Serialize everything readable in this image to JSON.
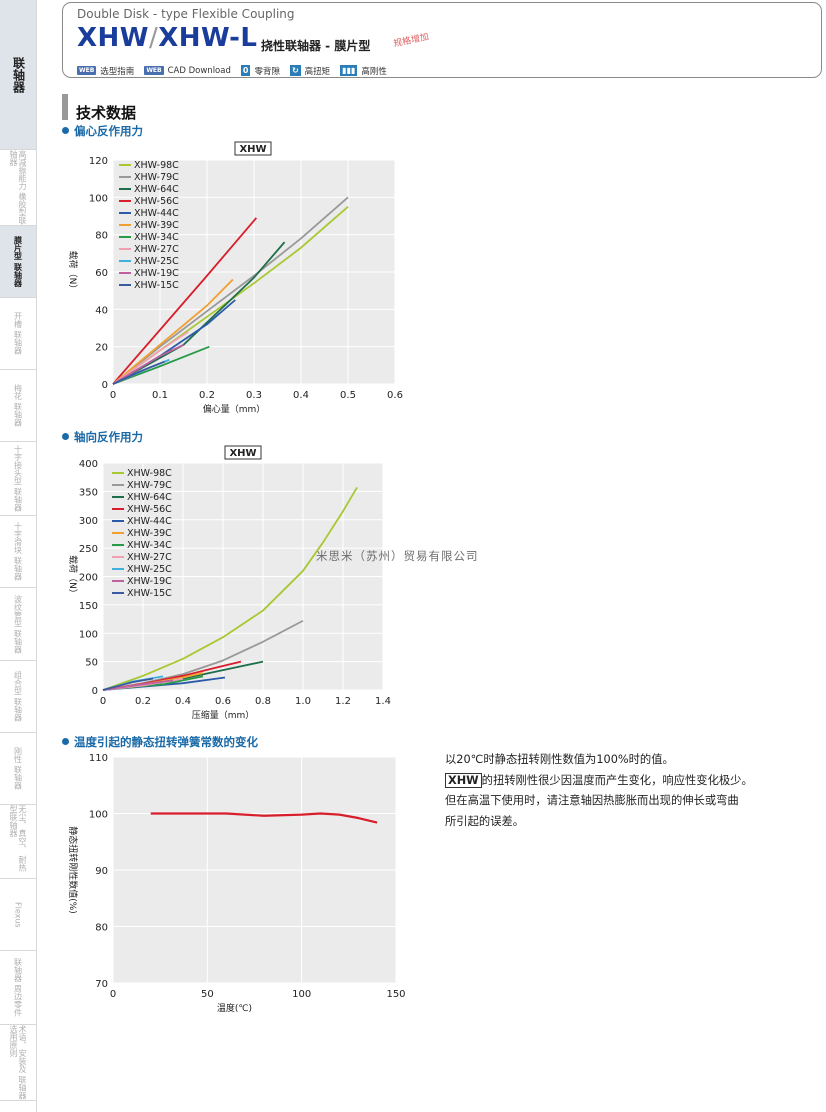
{
  "sidebar": {
    "tabs": [
      {
        "label": "联轴器",
        "state": "main"
      },
      {
        "label": "高减振能力\n橡胶型联轴器",
        "state": "normal"
      },
      {
        "label": "膜片型\n联轴器",
        "state": "active"
      },
      {
        "label": "开槽\n联轴器",
        "state": "normal"
      },
      {
        "label": "梅花\n联轴器",
        "state": "normal"
      },
      {
        "label": "十字接头型\n联轴器",
        "state": "normal"
      },
      {
        "label": "十字滑块\n联轴器",
        "state": "normal"
      },
      {
        "label": "波纹管型\n联轴器",
        "state": "normal"
      },
      {
        "label": "组合型\n联轴器",
        "state": "normal"
      },
      {
        "label": "刚性\n联轴器",
        "state": "normal"
      },
      {
        "label": "无尘、真空、\n耐热型联轴器",
        "state": "normal"
      },
      {
        "label": "Flexus",
        "state": "normal"
      },
      {
        "label": "联轴器\n周边零件",
        "state": "normal"
      },
      {
        "label": "术语、安装及\n联轴器选用原则",
        "state": "normal"
      }
    ]
  },
  "header": {
    "subtitle": "Double Disk - type Flexible Coupling",
    "model_a": "XHW",
    "model_sep": "/",
    "model_b": "XHW-L",
    "type": "挠性联轴器 - 膜片型",
    "extension": "规格增加",
    "links": {
      "web_badge": "WEB",
      "selection_guide": "选型指南",
      "cad_download": "CAD Download",
      "zero_backlash_icon": "0",
      "zero_backlash": "零背隙",
      "high_torque": "高扭矩",
      "high_rigidity": "高刚性"
    }
  },
  "section_title": "技术数据",
  "charts_meta": {
    "eccentric_heading": "偏心反作用力",
    "axial_heading": "轴向反作用力",
    "temperature_heading": "温度引起的静态扭转弹簧常数的变化"
  },
  "note": {
    "line1": "以20℃时静态扭转刚性数值为100%时的值。",
    "line2_box": "XHW",
    "line2_rest": "的扭转刚性很少因温度而产生变化，响应性变化极少。",
    "line3": "但在高温下使用时，请注意轴因热膨胀而出现的伸长或弯曲",
    "line4": "所引起的误差。"
  },
  "watermark": "米思米（苏州）贸易有限公司",
  "series_colors": {
    "XHW-98C": "#a8c832",
    "XHW-79C": "#999999",
    "XHW-64C": "#1e6e4a",
    "XHW-56C": "#d81e2a",
    "XHW-44C": "#2a5aa8",
    "XHW-39C": "#f0a030",
    "XHW-34C": "#2a9a4a",
    "XHW-27C": "#f0a0b0",
    "XHW-25C": "#40b0e0",
    "XHW-19C": "#c060a0",
    "XHW-15C": "#3a5aa0"
  },
  "chart_data": [
    {
      "type": "line",
      "title": "XHW",
      "xlabel": "偏心量（mm）",
      "ylabel": "载荷（N）",
      "xlim": [
        0,
        0.6
      ],
      "ylim": [
        0,
        120
      ],
      "xticks": [
        "0",
        "0.1",
        "0.2",
        "0.3",
        "0.4",
        "0.5",
        "0.6"
      ],
      "yticks": [
        "0",
        "20",
        "40",
        "60",
        "80",
        "100",
        "120"
      ],
      "legend": "top-left",
      "series": [
        {
          "name": "XHW-98C",
          "points": [
            [
              0,
              0
            ],
            [
              0.1,
              18
            ],
            [
              0.2,
              36
            ],
            [
              0.3,
              54
            ],
            [
              0.4,
              73
            ],
            [
              0.5,
              95
            ]
          ]
        },
        {
          "name": "XHW-79C",
          "points": [
            [
              0,
              0
            ],
            [
              0.1,
              20
            ],
            [
              0.2,
              39
            ],
            [
              0.3,
              58
            ],
            [
              0.4,
              78
            ],
            [
              0.5,
              100
            ]
          ]
        },
        {
          "name": "XHW-64C",
          "points": [
            [
              0,
              0
            ],
            [
              0.15,
              21
            ],
            [
              0.25,
              45
            ],
            [
              0.3,
              57
            ],
            [
              0.365,
              76
            ]
          ]
        },
        {
          "name": "XHW-56C",
          "points": [
            [
              0,
              0
            ],
            [
              0.1,
              29
            ],
            [
              0.2,
              58
            ],
            [
              0.305,
              89
            ]
          ]
        },
        {
          "name": "XHW-44C",
          "points": [
            [
              0,
              0
            ],
            [
              0.1,
              15
            ],
            [
              0.2,
              32
            ],
            [
              0.26,
              45
            ]
          ]
        },
        {
          "name": "XHW-39C",
          "points": [
            [
              0,
              0
            ],
            [
              0.1,
              21
            ],
            [
              0.2,
              42
            ],
            [
              0.255,
              56
            ]
          ]
        },
        {
          "name": "XHW-34C",
          "points": [
            [
              0,
              0
            ],
            [
              0.1,
              9.5
            ],
            [
              0.205,
              20
            ]
          ]
        },
        {
          "name": "XHW-27C",
          "points": [
            [
              0,
              0
            ],
            [
              0.1,
              18
            ],
            [
              0.16,
              28
            ]
          ]
        },
        {
          "name": "XHW-25C",
          "points": [
            [
              0,
              0
            ],
            [
              0.08,
              9
            ],
            [
              0.12,
              13
            ]
          ]
        },
        {
          "name": "XHW-19C",
          "points": [
            [
              0,
              0
            ],
            [
              0.1,
              15
            ],
            [
              0.15,
              21
            ]
          ]
        },
        {
          "name": "XHW-15C",
          "points": [
            [
              0,
              0
            ],
            [
              0.06,
              7
            ],
            [
              0.11,
              12
            ]
          ]
        }
      ]
    },
    {
      "type": "line",
      "title": "XHW",
      "xlabel": "压缩量（mm）",
      "ylabel": "载荷（N）",
      "xlim": [
        0,
        1.4
      ],
      "ylim": [
        0,
        400
      ],
      "xticks": [
        "0",
        "0.2",
        "0.4",
        "0.6",
        "0.8",
        "1.0",
        "1.2",
        "1.4"
      ],
      "yticks": [
        "0",
        "50",
        "100",
        "150",
        "200",
        "250",
        "300",
        "350",
        "400"
      ],
      "legend": "top-left",
      "series": [
        {
          "name": "XHW-98C",
          "points": [
            [
              0,
              0
            ],
            [
              0.2,
              25
            ],
            [
              0.4,
              55
            ],
            [
              0.6,
              93
            ],
            [
              0.8,
              140
            ],
            [
              1.0,
              210
            ],
            [
              1.1,
              260
            ],
            [
              1.2,
              315
            ],
            [
              1.27,
              357
            ]
          ]
        },
        {
          "name": "XHW-79C",
          "points": [
            [
              0,
              0
            ],
            [
              0.2,
              12
            ],
            [
              0.4,
              28
            ],
            [
              0.6,
              52
            ],
            [
              0.8,
              85
            ],
            [
              1.0,
              122
            ]
          ]
        },
        {
          "name": "XHW-64C",
          "points": [
            [
              0,
              0
            ],
            [
              0.2,
              8
            ],
            [
              0.4,
              20
            ],
            [
              0.6,
              35
            ],
            [
              0.8,
              50
            ]
          ]
        },
        {
          "name": "XHW-56C",
          "points": [
            [
              0,
              0
            ],
            [
              0.2,
              11
            ],
            [
              0.4,
              25
            ],
            [
              0.55,
              38
            ],
            [
              0.69,
              50
            ]
          ]
        },
        {
          "name": "XHW-44C",
          "points": [
            [
              0,
              0
            ],
            [
              0.2,
              6
            ],
            [
              0.4,
              12
            ],
            [
              0.61,
              22
            ]
          ]
        },
        {
          "name": "XHW-39C",
          "points": [
            [
              0,
              0
            ],
            [
              0.2,
              10
            ],
            [
              0.4,
              22
            ],
            [
              0.5,
              30
            ]
          ]
        },
        {
          "name": "XHW-34C",
          "points": [
            [
              0,
              0
            ],
            [
              0.2,
              7
            ],
            [
              0.3,
              10
            ],
            [
              0.5,
              24
            ]
          ]
        },
        {
          "name": "XHW-27C",
          "points": [
            [
              0,
              0
            ],
            [
              0.2,
              8
            ],
            [
              0.4,
              20
            ]
          ]
        },
        {
          "name": "XHW-25C",
          "points": [
            [
              0,
              0
            ],
            [
              0.15,
              15
            ],
            [
              0.3,
              24
            ]
          ]
        },
        {
          "name": "XHW-19C",
          "points": [
            [
              0,
              0
            ],
            [
              0.2,
              10
            ],
            [
              0.35,
              17
            ]
          ]
        },
        {
          "name": "XHW-15C",
          "points": [
            [
              0,
              0
            ],
            [
              0.15,
              14
            ],
            [
              0.25,
              20
            ]
          ]
        }
      ]
    },
    {
      "type": "line",
      "title": "",
      "xlabel": "温度(℃)",
      "ylabel": "静态扭转刚性数值(%)",
      "xlim": [
        0,
        150
      ],
      "ylim": [
        70,
        110
      ],
      "xticks": [
        "0",
        "50",
        "100",
        "150"
      ],
      "yticks": [
        "70",
        "80",
        "90",
        "100",
        "110"
      ],
      "legend": "none",
      "series": [
        {
          "name": "",
          "points": [
            [
              20,
              100
            ],
            [
              50,
              100
            ],
            [
              60,
              100
            ],
            [
              80,
              99.6
            ],
            [
              100,
              99.8
            ],
            [
              110,
              100
            ],
            [
              120,
              99.8
            ],
            [
              130,
              99.2
            ],
            [
              140,
              98.4
            ]
          ]
        }
      ]
    }
  ]
}
